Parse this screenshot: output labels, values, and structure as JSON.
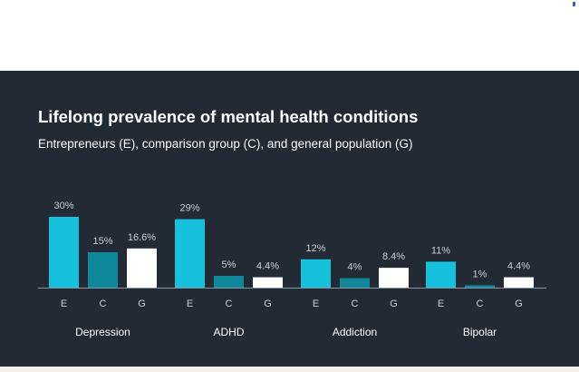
{
  "colors": {
    "background": "#222a36",
    "entrepreneurs": "#17c1db",
    "comparison": "#0f8899",
    "general": "#ffffff",
    "baseline": "#8a94a2",
    "tick_text": "#c8ced6",
    "category_text": "#ffffff"
  },
  "chart_data": {
    "type": "bar",
    "title": "Lifelong prevalence of mental health conditions",
    "subtitle": "Entrepreneurs (E), comparison group (C), and general population (G)",
    "categories": [
      "Depression",
      "ADHD",
      "Addiction",
      "Bipolar"
    ],
    "series": [
      {
        "name": "E",
        "values": [
          30,
          29,
          12,
          11
        ],
        "labels": [
          "30%",
          "29%",
          "12%",
          "11%"
        ]
      },
      {
        "name": "C",
        "values": [
          15,
          5,
          4,
          1
        ],
        "labels": [
          "15%",
          "5%",
          "4%",
          "1%"
        ]
      },
      {
        "name": "G",
        "values": [
          16.6,
          4.4,
          8.4,
          4.4
        ],
        "labels": [
          "16.6%",
          "4.4%",
          "8.4%",
          "4.4%"
        ]
      }
    ],
    "bar_labels": [
      "E",
      "C",
      "G"
    ],
    "grid": false,
    "legend": "none"
  }
}
